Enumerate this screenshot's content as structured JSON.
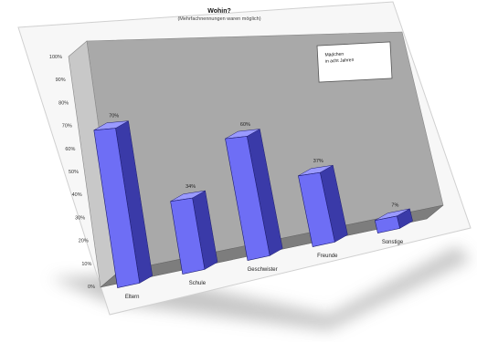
{
  "chart_data": {
    "type": "bar",
    "title": "Wohin?",
    "subtitle": "(Mehrfachnennungen waren möglich)",
    "categories": [
      "Eltern",
      "Schule",
      "Geschwister",
      "Freunde",
      "Sonstige"
    ],
    "values": [
      70,
      34,
      60,
      37,
      7
    ],
    "data_labels": [
      "70%",
      "34%",
      "60%",
      "37%",
      "7%"
    ],
    "y_ticks": [
      "0%",
      "10%",
      "20%",
      "30%",
      "40%",
      "50%",
      "60%",
      "70%",
      "80%",
      "90%",
      "100%"
    ],
    "ylim": [
      0,
      100
    ],
    "legend": {
      "placement": "top-right",
      "entries": [
        "Mädchen",
        "in acht Jahren"
      ]
    },
    "colors": {
      "bar_front": "#6e6ef5",
      "bar_side": "#3a3aa8",
      "bar_top": "#9a9aff",
      "back_wall": "#a9a9a9",
      "floor": "#7d7d7d"
    },
    "grid": false
  }
}
